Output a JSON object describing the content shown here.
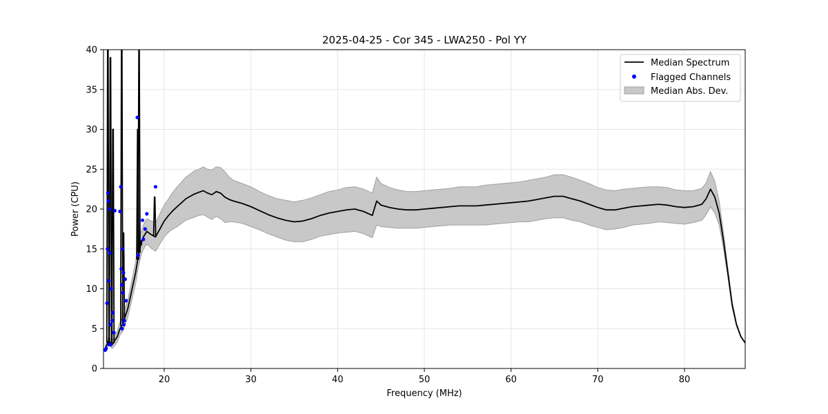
{
  "chart_data": {
    "type": "line",
    "title": "2025-04-25 - Cor 345 - LWA250 - Pol YY",
    "xlabel": "Frequency (MHz)",
    "ylabel": "Power (CPU)",
    "xlim": [
      13.0,
      87.0
    ],
    "ylim": [
      0,
      40
    ],
    "xticks": [
      20,
      30,
      40,
      50,
      60,
      70,
      80
    ],
    "yticks": [
      0,
      5,
      10,
      15,
      20,
      25,
      30,
      35,
      40
    ],
    "grid": true,
    "legend": {
      "placement": "top-right",
      "entries": [
        "Median Spectrum",
        "Flagged Channels",
        "Median Abs. Dev."
      ]
    },
    "colors": {
      "median": "#000000",
      "flagged": "#0000ff",
      "mad_fill": "#c8c8c8",
      "mad_edge": "#a0a0a0",
      "grid": "#e6e6e6"
    },
    "series": [
      {
        "name": "Median Spectrum",
        "x": [
          13.2,
          13.4,
          13.6,
          13.8,
          14.0,
          14.3,
          14.6,
          14.9,
          15.2,
          15.5,
          15.8,
          16.1,
          16.4,
          16.7,
          17.0,
          17.3,
          17.6,
          18.0,
          18.5,
          19.0,
          19.5,
          20.0,
          20.5,
          21.0,
          21.5,
          22.0,
          22.5,
          23.0,
          23.5,
          24.0,
          24.5,
          25.0,
          25.5,
          26.0,
          26.5,
          27.0,
          27.5,
          28.0,
          29.0,
          30.0,
          31.0,
          32.0,
          33.0,
          34.0,
          35.0,
          36.0,
          37.0,
          38.0,
          39.0,
          40.0,
          41.0,
          42.0,
          43.0,
          44.0,
          44.5,
          45.0,
          46.0,
          47.0,
          48.0,
          49.0,
          50.0,
          51.0,
          52.0,
          53.0,
          54.0,
          55.0,
          56.0,
          57.0,
          58.0,
          59.0,
          60.0,
          61.0,
          62.0,
          63.0,
          64.0,
          65.0,
          66.0,
          67.0,
          68.0,
          69.0,
          70.0,
          71.0,
          72.0,
          73.0,
          74.0,
          75.0,
          76.0,
          77.0,
          78.0,
          79.0,
          80.0,
          81.0,
          82.0,
          82.5,
          83.0,
          83.5,
          84.0,
          84.5,
          85.0,
          85.5,
          86.0,
          86.5,
          87.0
        ],
        "values": [
          2.5,
          3.0,
          3.5,
          3.2,
          3.0,
          3.5,
          4.0,
          5.0,
          5.5,
          6.5,
          7.5,
          9.0,
          10.5,
          12.0,
          14.0,
          15.5,
          16.5,
          17.2,
          16.8,
          16.5,
          17.5,
          18.5,
          19.2,
          19.8,
          20.3,
          20.8,
          21.3,
          21.6,
          21.9,
          22.1,
          22.3,
          22.0,
          21.8,
          22.2,
          22.0,
          21.5,
          21.2,
          21.0,
          20.7,
          20.3,
          19.8,
          19.3,
          18.9,
          18.6,
          18.4,
          18.5,
          18.8,
          19.2,
          19.5,
          19.7,
          19.9,
          20.0,
          19.7,
          19.2,
          21.0,
          20.5,
          20.2,
          20.0,
          19.9,
          19.9,
          20.0,
          20.1,
          20.2,
          20.3,
          20.4,
          20.4,
          20.4,
          20.5,
          20.6,
          20.7,
          20.8,
          20.9,
          21.0,
          21.2,
          21.4,
          21.6,
          21.6,
          21.3,
          21.0,
          20.6,
          20.2,
          19.9,
          19.9,
          20.1,
          20.3,
          20.4,
          20.5,
          20.6,
          20.5,
          20.3,
          20.2,
          20.3,
          20.6,
          21.3,
          22.5,
          21.5,
          19.5,
          16.0,
          12.0,
          8.0,
          5.5,
          4.0,
          3.2
        ],
        "mad": [
          0.3,
          0.4,
          0.5,
          0.5,
          0.5,
          0.6,
          0.7,
          0.8,
          0.9,
          1.0,
          1.1,
          1.2,
          1.3,
          1.4,
          1.4,
          1.5,
          1.5,
          1.6,
          1.7,
          1.8,
          1.9,
          2.0,
          2.1,
          2.3,
          2.5,
          2.6,
          2.7,
          2.8,
          2.9,
          2.9,
          3.0,
          3.0,
          3.1,
          3.1,
          3.2,
          3.2,
          2.8,
          2.6,
          2.5,
          2.5,
          2.4,
          2.4,
          2.4,
          2.5,
          2.5,
          2.6,
          2.6,
          2.6,
          2.7,
          2.7,
          2.8,
          2.8,
          2.8,
          2.8,
          3.0,
          2.7,
          2.5,
          2.4,
          2.3,
          2.3,
          2.3,
          2.3,
          2.3,
          2.3,
          2.4,
          2.4,
          2.4,
          2.5,
          2.5,
          2.5,
          2.5,
          2.5,
          2.6,
          2.6,
          2.6,
          2.7,
          2.7,
          2.7,
          2.6,
          2.6,
          2.5,
          2.5,
          2.4,
          2.4,
          2.3,
          2.3,
          2.3,
          2.2,
          2.2,
          2.1,
          2.1,
          2.0,
          2.0,
          2.0,
          2.2,
          2.0,
          1.5,
          1.0,
          0.6,
          0.4,
          0.2,
          0.1,
          0.05
        ]
      },
      {
        "name": "Flagged Channels",
        "x": [
          13.2,
          13.3,
          13.4,
          13.45,
          13.5,
          13.55,
          13.6,
          13.65,
          13.7,
          13.75,
          13.8,
          13.85,
          13.9,
          14.0,
          14.1,
          14.2,
          14.3,
          14.9,
          15.0,
          15.05,
          15.1,
          15.15,
          15.2,
          15.25,
          15.3,
          15.35,
          15.4,
          15.5,
          15.6,
          16.9,
          17.0,
          17.5,
          17.6,
          17.8,
          18.0,
          19.0
        ],
        "values": [
          2.3,
          2.5,
          8.2,
          15.0,
          22.0,
          21.0,
          11.0,
          3.0,
          20.0,
          14.5,
          5.5,
          3.0,
          10.0,
          6.0,
          7.0,
          4.5,
          19.8,
          19.7,
          22.8,
          12.5,
          10.5,
          5.0,
          15.0,
          9.5,
          12.0,
          5.5,
          6.0,
          11.2,
          8.5,
          31.5,
          14.2,
          18.6,
          16.2,
          17.5,
          19.4,
          22.8
        ]
      }
    ],
    "spikes": [
      {
        "x": 13.5,
        "peak": 40
      },
      {
        "x": 13.8,
        "peak": 39
      },
      {
        "x": 14.1,
        "peak": 30
      },
      {
        "x": 15.1,
        "peak": 40
      },
      {
        "x": 15.3,
        "peak": 17
      },
      {
        "x": 16.95,
        "peak": 30
      },
      {
        "x": 17.1,
        "peak": 40
      },
      {
        "x": 17.3,
        "peak": 16
      },
      {
        "x": 18.9,
        "peak": 21.5
      }
    ]
  }
}
